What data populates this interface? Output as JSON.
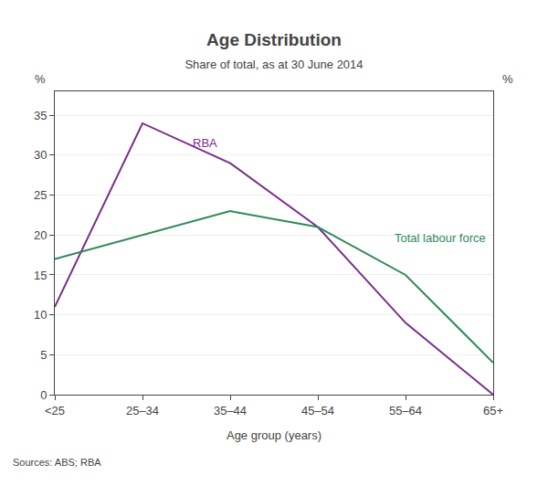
{
  "chart_data": {
    "type": "line",
    "title": "Age Distribution",
    "subtitle": "Share of total, as at 30 June 2014",
    "xlabel": "Age group (years)",
    "ylabel": "%",
    "y2label": "%",
    "source": "Sources: ABS; RBA",
    "categories": [
      "<25",
      "25–34",
      "35–44",
      "45–54",
      "55–64",
      "65+"
    ],
    "series": [
      {
        "name": "RBA",
        "color": "#7B2D8B",
        "values": [
          11,
          34,
          29,
          21,
          9,
          0
        ]
      },
      {
        "name": "Total labour force",
        "color": "#2E8B57",
        "values": [
          17,
          20,
          23,
          21,
          15,
          4
        ]
      }
    ],
    "ylim": [
      0,
      38
    ],
    "yticks": [
      0,
      5,
      10,
      15,
      20,
      25,
      30,
      35
    ],
    "y2lim": [
      0,
      38
    ],
    "y2ticks": [
      0,
      5,
      10,
      15,
      20,
      25,
      30,
      35
    ],
    "grid": true
  }
}
